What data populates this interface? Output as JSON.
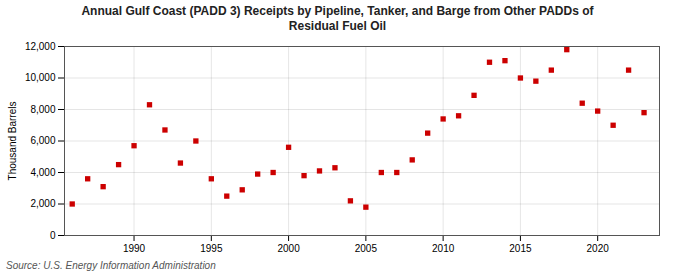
{
  "chart_data": {
    "type": "scatter",
    "title": "Annual Gulf Coast (PADD 3) Receipts by Pipeline, Tanker, and Barge from Other PADDs of\nResidual Fuel Oil",
    "ylabel": "Thousand Barrels",
    "source": "Source: U.S. Energy Information Administration",
    "x": [
      1986,
      1987,
      1988,
      1989,
      1990,
      1991,
      1992,
      1993,
      1994,
      1995,
      1996,
      1997,
      1998,
      1999,
      2000,
      2001,
      2002,
      2003,
      2004,
      2005,
      2006,
      2007,
      2008,
      2009,
      2010,
      2011,
      2012,
      2013,
      2014,
      2015,
      2016,
      2017,
      2018,
      2019,
      2020,
      2021,
      2022,
      2023
    ],
    "values": [
      2000,
      3600,
      3100,
      4500,
      5700,
      8300,
      6700,
      4600,
      6000,
      3600,
      2500,
      2900,
      3900,
      4000,
      5600,
      3800,
      4100,
      4300,
      2200,
      1800,
      4000,
      4000,
      4800,
      6500,
      7400,
      7600,
      8900,
      11000,
      11100,
      10000,
      9800,
      10500,
      11800,
      8400,
      7900,
      7000,
      10500,
      7800
    ],
    "color": "#cc0000",
    "marker": "square",
    "xlim": [
      1985.5,
      2024
    ],
    "xticks": [
      1990,
      1995,
      2000,
      2005,
      2010,
      2015,
      2020
    ],
    "ylim": [
      0,
      12000
    ],
    "yticks": [
      0,
      {
        "value": 2000,
        "label": "2,000"
      },
      {
        "value": 4000,
        "label": "4,000"
      },
      {
        "value": 6000,
        "label": "6,000"
      },
      {
        "value": 8000,
        "label": "8,000"
      },
      {
        "value": 10000,
        "label": "10,000"
      },
      {
        "value": 12000,
        "label": "12,000"
      }
    ],
    "grid": true
  }
}
